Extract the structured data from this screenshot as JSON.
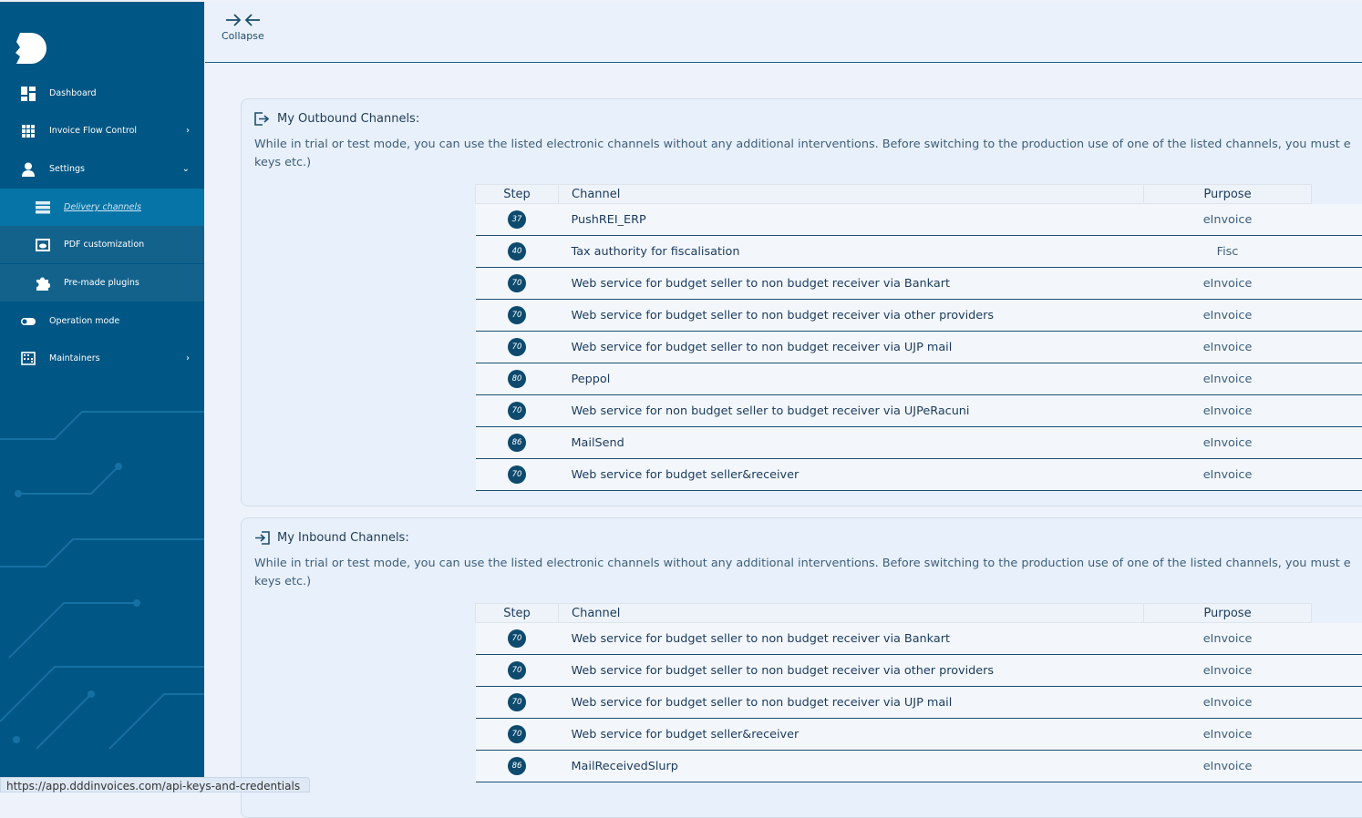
{
  "sidebar": {
    "items": [
      {
        "label": "Dashboard",
        "icon": "dashboard-icon"
      },
      {
        "label": "Invoice Flow Control",
        "icon": "grid-icon"
      },
      {
        "label": "Settings",
        "icon": "user-icon"
      },
      {
        "label": "Delivery channels",
        "icon": "list-icon",
        "active": true
      },
      {
        "label": "PDF customization",
        "icon": "eye-icon"
      },
      {
        "label": "Pre-made plugins",
        "icon": "puzzle-icon"
      },
      {
        "label": "Operation mode",
        "icon": "toggle-icon"
      },
      {
        "label": "Maintainers",
        "icon": "building-icon"
      }
    ]
  },
  "topbar": {
    "collapse_label": "Collapse"
  },
  "outbound": {
    "title": "My Outbound Channels:",
    "desc_line1": "While in trial or test mode, you can use the listed electronic channels without any additional interventions. Before switching to the production use of one of the listed channels, you must e",
    "desc_line2": "keys etc.)",
    "headers": [
      "Step",
      "Channel",
      "Purpose"
    ],
    "rows": [
      {
        "step": "37",
        "channel": "PushREI_ERP",
        "purpose": "eInvoice"
      },
      {
        "step": "40",
        "channel": "Tax authority for fiscalisation",
        "purpose": "Fisc"
      },
      {
        "step": "70",
        "channel": "Web service for budget seller to non budget receiver via Bankart",
        "purpose": "eInvoice"
      },
      {
        "step": "70",
        "channel": "Web service for budget seller to non budget receiver via other providers",
        "purpose": "eInvoice"
      },
      {
        "step": "70",
        "channel": "Web service for budget seller to non budget receiver via UJP mail",
        "purpose": "eInvoice"
      },
      {
        "step": "80",
        "channel": "Peppol",
        "purpose": "eInvoice"
      },
      {
        "step": "70",
        "channel": "Web service for non budget seller to budget receiver via UJPeRacuni",
        "purpose": "eInvoice"
      },
      {
        "step": "86",
        "channel": "MailSend",
        "purpose": "eInvoice"
      },
      {
        "step": "70",
        "channel": "Web service for budget seller&receiver",
        "purpose": "eInvoice"
      }
    ]
  },
  "inbound": {
    "title": "My Inbound Channels:",
    "desc_line1": "While in trial or test mode, you can use the listed electronic channels without any additional interventions. Before switching to the production use of one of the listed channels, you must e",
    "desc_line2": "keys etc.)",
    "headers": [
      "Step",
      "Channel",
      "Purpose"
    ],
    "rows": [
      {
        "step": "70",
        "channel": "Web service for budget seller to non budget receiver via Bankart",
        "purpose": "eInvoice"
      },
      {
        "step": "70",
        "channel": "Web service for budget seller to non budget receiver via other providers",
        "purpose": "eInvoice"
      },
      {
        "step": "70",
        "channel": "Web service for budget seller to non budget receiver via UJP mail",
        "purpose": "eInvoice"
      },
      {
        "step": "70",
        "channel": "Web service for budget seller&receiver",
        "purpose": "eInvoice"
      },
      {
        "step": "86",
        "channel": "MailReceivedSlurp",
        "purpose": "eInvoice"
      }
    ]
  },
  "status_bar": {
    "url": "https://app.dddinvoices.com/api-keys-and-credentials"
  },
  "colors": {
    "sidebar": "#005684",
    "active": "#0674a6",
    "badge": "#0d4a6e"
  }
}
